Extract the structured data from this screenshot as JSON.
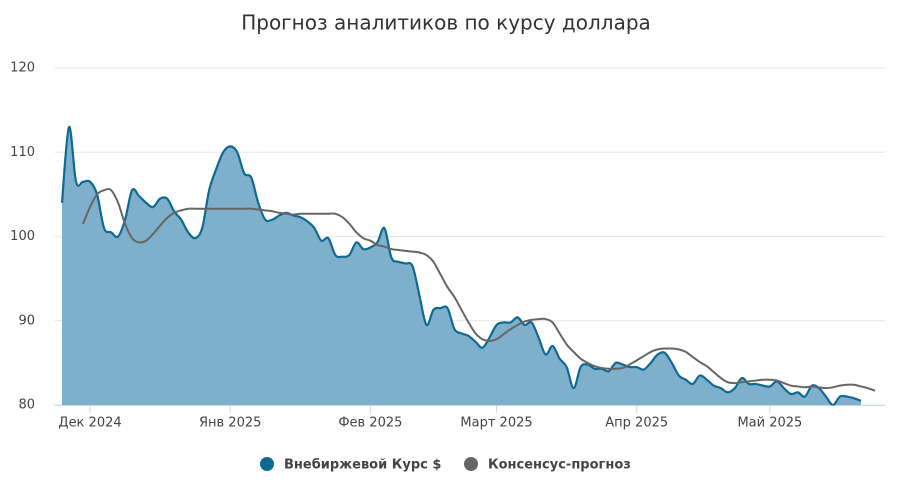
{
  "chart_data": {
    "type": "area-line",
    "title": "Прогноз аналитиков по курсу доллара",
    "categories": [
      null,
      null,
      null,
      null,
      "Дек 2024",
      null,
      null,
      null,
      null,
      null,
      null,
      null,
      null,
      null,
      null,
      null,
      null,
      null,
      null,
      null,
      null,
      null,
      null,
      null,
      "Янв 2025",
      null,
      null,
      null,
      null,
      null,
      null,
      null,
      null,
      null,
      null,
      null,
      null,
      null,
      null,
      null,
      null,
      null,
      null,
      null,
      "Фев 2025",
      null,
      null,
      null,
      null,
      null,
      null,
      null,
      null,
      null,
      null,
      null,
      null,
      null,
      null,
      null,
      null,
      null,
      "Март 2025",
      null,
      null,
      null,
      null,
      null,
      null,
      null,
      null,
      null,
      null,
      null,
      null,
      null,
      null,
      null,
      null,
      null,
      null,
      null,
      "Апр 2025",
      null,
      null,
      null,
      null,
      null,
      null,
      null,
      null,
      null,
      null,
      null,
      null,
      null,
      null,
      null,
      null,
      null,
      null,
      "Май 2025",
      null,
      null,
      null,
      null,
      null,
      null,
      null,
      null,
      null,
      null,
      null,
      null,
      null,
      null,
      null
    ],
    "series": [
      {
        "name": "Внебиржевой Курс $",
        "kind": "area",
        "color": "#0e6a93",
        "fill": "#7eb0cb",
        "values": [
          104,
          113,
          106.5,
          106.5,
          106.5,
          105,
          101,
          100.5,
          100,
          102,
          105.5,
          104.8,
          104,
          103.5,
          104.5,
          104.5,
          103,
          102,
          100.5,
          99.8,
          101,
          105.5,
          108,
          110,
          110.7,
          110,
          107.5,
          107,
          104,
          102,
          102,
          102.5,
          102.8,
          102.5,
          102.3,
          101.8,
          101,
          99.5,
          99.8,
          97.8,
          97.6,
          97.8,
          99.3,
          98.5,
          98.7,
          99.3,
          101,
          97.5,
          97,
          96.8,
          96.5,
          93,
          89.5,
          91.3,
          91.5,
          91.5,
          89,
          88.5,
          88.2,
          87.5,
          86.8,
          88,
          89.5,
          89.8,
          89.8,
          90.4,
          89.5,
          89.8,
          88,
          86,
          87,
          85.5,
          84.5,
          82,
          84.5,
          84.8,
          84.3,
          84.3,
          84,
          85,
          84.8,
          84.5,
          84.5,
          84.2,
          85,
          86,
          86.2,
          85,
          83.5,
          83,
          82.5,
          83.5,
          83,
          82.3,
          82,
          81.5,
          82,
          83.2,
          82.5,
          82.5,
          82.3,
          82.2,
          82.8,
          82,
          81.3,
          81.5,
          81,
          82.3,
          82,
          81,
          80,
          81,
          81,
          80.8,
          80.5,
          null,
          null
        ]
      },
      {
        "name": "Консенсус-прогноз",
        "kind": "line",
        "color": "#666666",
        "values": [
          null,
          null,
          null,
          101.5,
          103.5,
          105,
          105.5,
          105.5,
          104,
          101.5,
          99.8,
          99.3,
          99.5,
          100.3,
          101.3,
          102.2,
          102.8,
          103.1,
          103.3,
          103.3,
          103.3,
          103.3,
          103.3,
          103.3,
          103.3,
          103.3,
          103.3,
          103.3,
          103.2,
          103.1,
          103,
          102.8,
          102.7,
          102.6,
          102.7,
          102.7,
          102.7,
          102.7,
          102.7,
          102.7,
          102.3,
          101.5,
          100.5,
          99.8,
          99.5,
          99,
          98.8,
          98.5,
          98.4,
          98.3,
          98.2,
          98.1,
          97.8,
          97,
          95.5,
          94,
          92.8,
          91.3,
          89.8,
          88.5,
          87.8,
          87.6,
          87.8,
          88.4,
          89,
          89.5,
          89.9,
          90.1,
          90.2,
          90.2,
          89.8,
          88.5,
          87.2,
          86.3,
          85.5,
          85,
          84.6,
          84.4,
          84.3,
          84.3,
          84.4,
          84.8,
          85.3,
          85.8,
          86.3,
          86.6,
          86.7,
          86.7,
          86.6,
          86.3,
          85.7,
          85.1,
          84.6,
          83.9,
          83.2,
          82.7,
          82.6,
          82.7,
          82.8,
          82.9,
          83,
          83,
          82.9,
          82.6,
          82.3,
          82.2,
          82.1,
          82.2,
          82.1,
          82,
          82.1,
          82.3,
          82.4,
          82.4,
          82.2,
          82,
          81.7
        ]
      }
    ],
    "ylim": [
      80,
      120
    ],
    "yticks": [
      80,
      90,
      100,
      110,
      120
    ],
    "grid": true
  }
}
